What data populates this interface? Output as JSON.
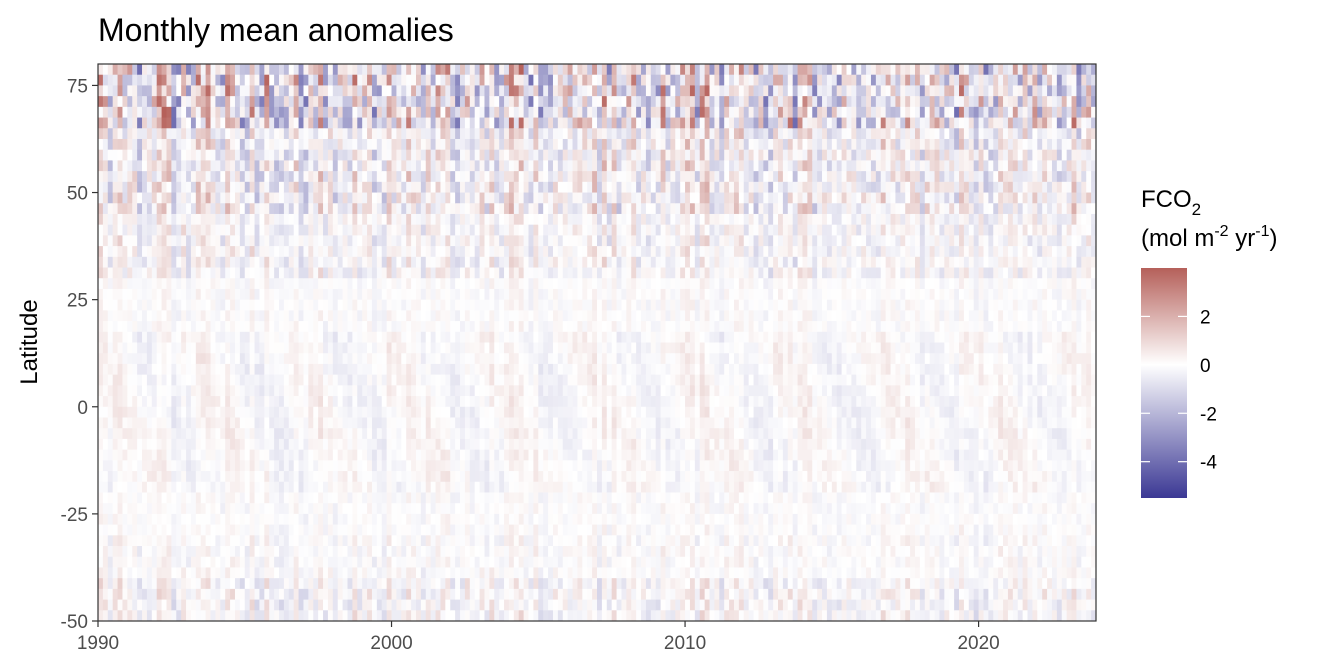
{
  "chart_data": {
    "type": "heatmap",
    "title": "Monthly mean anomalies",
    "xlabel": "",
    "ylabel": "Latitude",
    "x_range": [
      1990,
      2024
    ],
    "y_range": [
      -50,
      80
    ],
    "x_ticks": [
      1990,
      2000,
      2010,
      2020
    ],
    "y_ticks": [
      75,
      50,
      25,
      0,
      -25,
      -50
    ],
    "legend": {
      "title_main": "FCO",
      "title_sub": "2",
      "units_prefix": "(mol m",
      "units_exp1": "-2",
      "units_mid": " yr",
      "units_exp2": "-1",
      "units_suffix": ")",
      "range": [
        -5.5,
        4
      ],
      "ticks": [
        2,
        0,
        -2,
        -4
      ],
      "position": "right"
    },
    "colors": {
      "low": "#3b3894",
      "mid": "#ffffff",
      "high": "#b5605a"
    },
    "bands": [
      {
        "lat_from": 65,
        "lat_to": 80,
        "amplitude": 3.5
      },
      {
        "lat_from": 45,
        "lat_to": 65,
        "amplitude": 1.8
      },
      {
        "lat_from": 30,
        "lat_to": 45,
        "amplitude": 1.1
      },
      {
        "lat_from": -30,
        "lat_to": 30,
        "amplitude": 0.45
      },
      {
        "lat_from": -40,
        "lat_to": -30,
        "amplitude": 0.6
      },
      {
        "lat_from": -50,
        "lat_to": -40,
        "amplitude": 1.1
      }
    ]
  }
}
